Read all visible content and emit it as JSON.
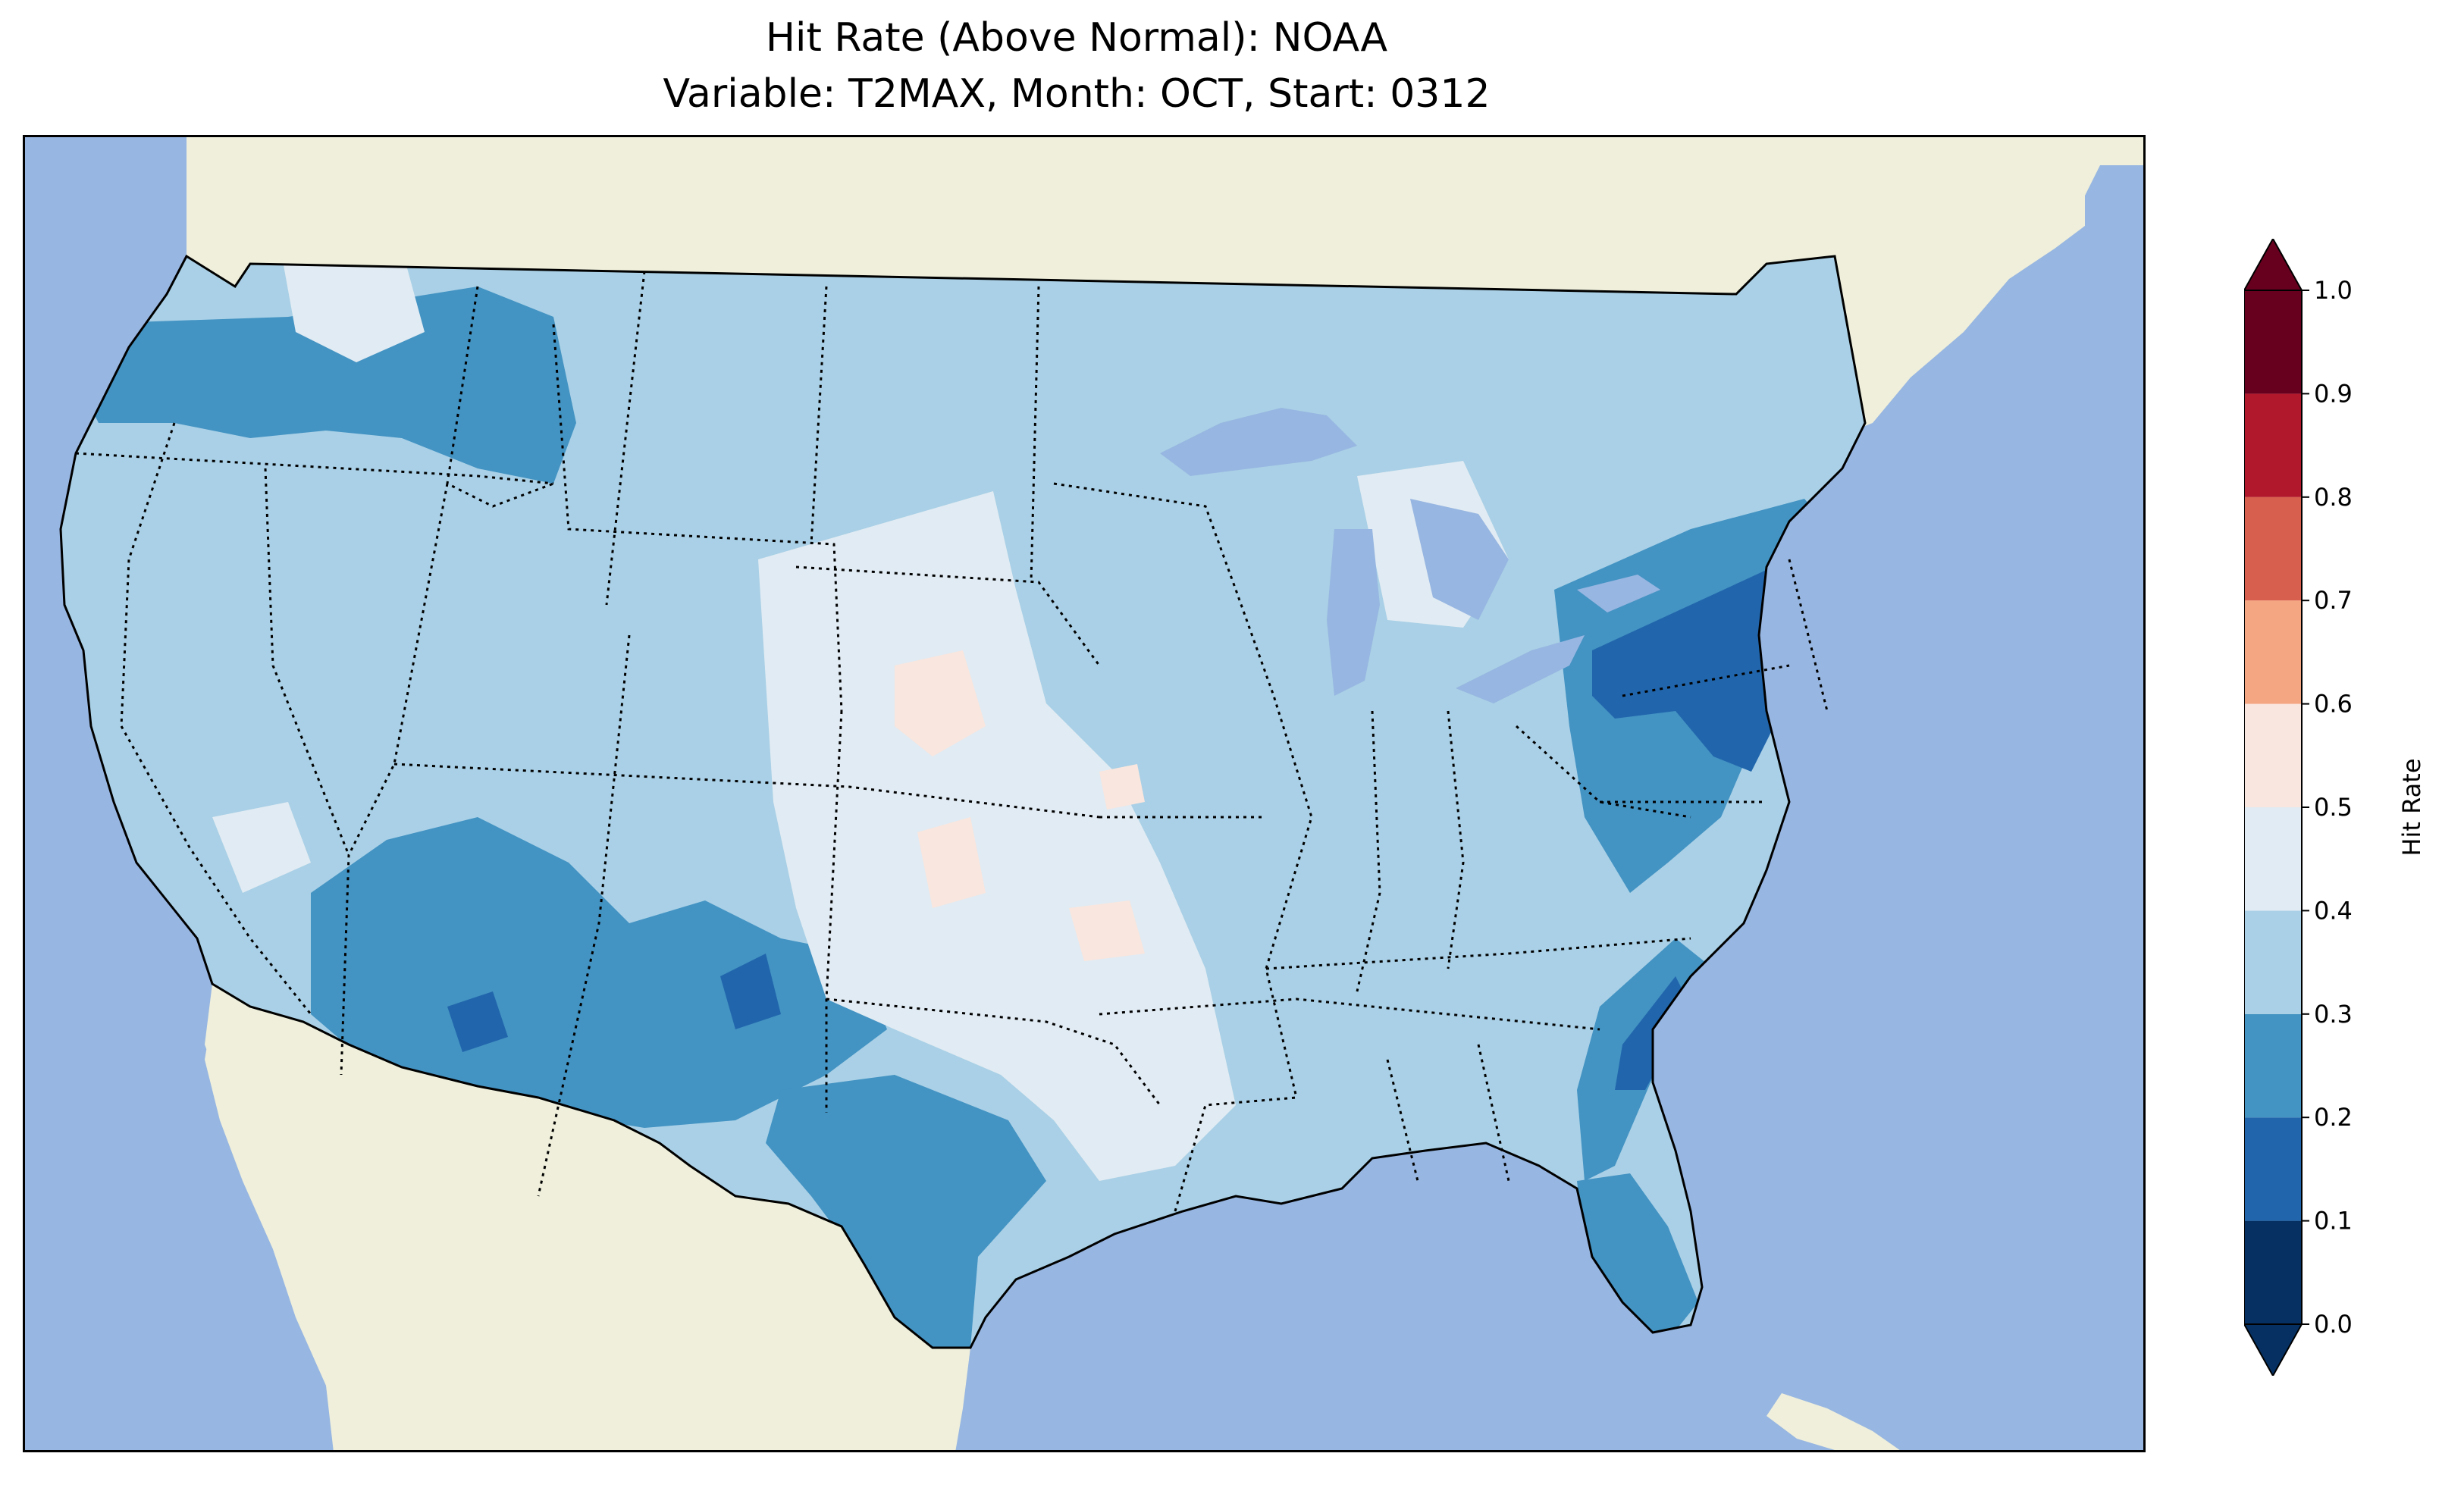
{
  "title": {
    "line1": "Hit Rate (Above Normal): NOAA",
    "line2": "Variable: T2MAX, Month: OCT, Start: 0312"
  },
  "colors": {
    "ocean": "#97b6e1",
    "land": "#efefdb",
    "lakes": "#97b6e1",
    "border": "#000000"
  },
  "colorbar": {
    "label": "Hit Rate",
    "ticks": [
      "0.0",
      "0.1",
      "0.2",
      "0.3",
      "0.4",
      "0.5",
      "0.6",
      "0.7",
      "0.8",
      "0.9",
      "1.0"
    ],
    "bins": [
      {
        "range": [
          0.0,
          0.1
        ],
        "color": "#053061"
      },
      {
        "range": [
          0.1,
          0.2
        ],
        "color": "#2166ac"
      },
      {
        "range": [
          0.2,
          0.3
        ],
        "color": "#4393c3"
      },
      {
        "range": [
          0.3,
          0.4
        ],
        "color": "#a9d0e6"
      },
      {
        "range": [
          0.4,
          0.5
        ],
        "color": "#e1ebf3"
      },
      {
        "range": [
          0.5,
          0.6
        ],
        "color": "#f9e6de"
      },
      {
        "range": [
          0.6,
          0.7
        ],
        "color": "#f4a582"
      },
      {
        "range": [
          0.7,
          0.8
        ],
        "color": "#d6604d"
      },
      {
        "range": [
          0.8,
          0.9
        ],
        "color": "#b2182b"
      },
      {
        "range": [
          0.9,
          1.0
        ],
        "color": "#67001f"
      }
    ],
    "extend": "both"
  },
  "map_data": {
    "variable": "T2MAX",
    "month": "OCT",
    "start": "0312",
    "model": "NOAA",
    "region": "Contiguous United States",
    "dominant_value_range": [
      0.3,
      0.4
    ],
    "regions": [
      {
        "name": "Northeast / Pennsylvania / New Jersey",
        "range": [
          0.1,
          0.2
        ]
      },
      {
        "name": "Southern Arizona",
        "range": [
          0.1,
          0.2
        ]
      },
      {
        "name": "Southeast New Mexico",
        "range": [
          0.1,
          0.2
        ]
      },
      {
        "name": "South Carolina coast",
        "range": [
          0.1,
          0.2
        ]
      },
      {
        "name": "Oregon / Idaho / Montana",
        "range": [
          0.2,
          0.3
        ]
      },
      {
        "name": "Arizona / New Mexico",
        "range": [
          0.2,
          0.3
        ]
      },
      {
        "name": "Central and South Texas",
        "range": [
          0.2,
          0.3
        ]
      },
      {
        "name": "Florida",
        "range": [
          0.2,
          0.3
        ]
      },
      {
        "name": "Mid-Atlantic / Virginia",
        "range": [
          0.2,
          0.3
        ]
      },
      {
        "name": "Great Plains (Nebraska / Kansas / Oklahoma)",
        "range": [
          0.4,
          0.5
        ]
      },
      {
        "name": "Mississippi valley",
        "range": [
          0.4,
          0.5
        ]
      },
      {
        "name": "Western Nebraska / Kansas / Oklahoma patches",
        "range": [
          0.5,
          0.6
        ]
      }
    ]
  }
}
